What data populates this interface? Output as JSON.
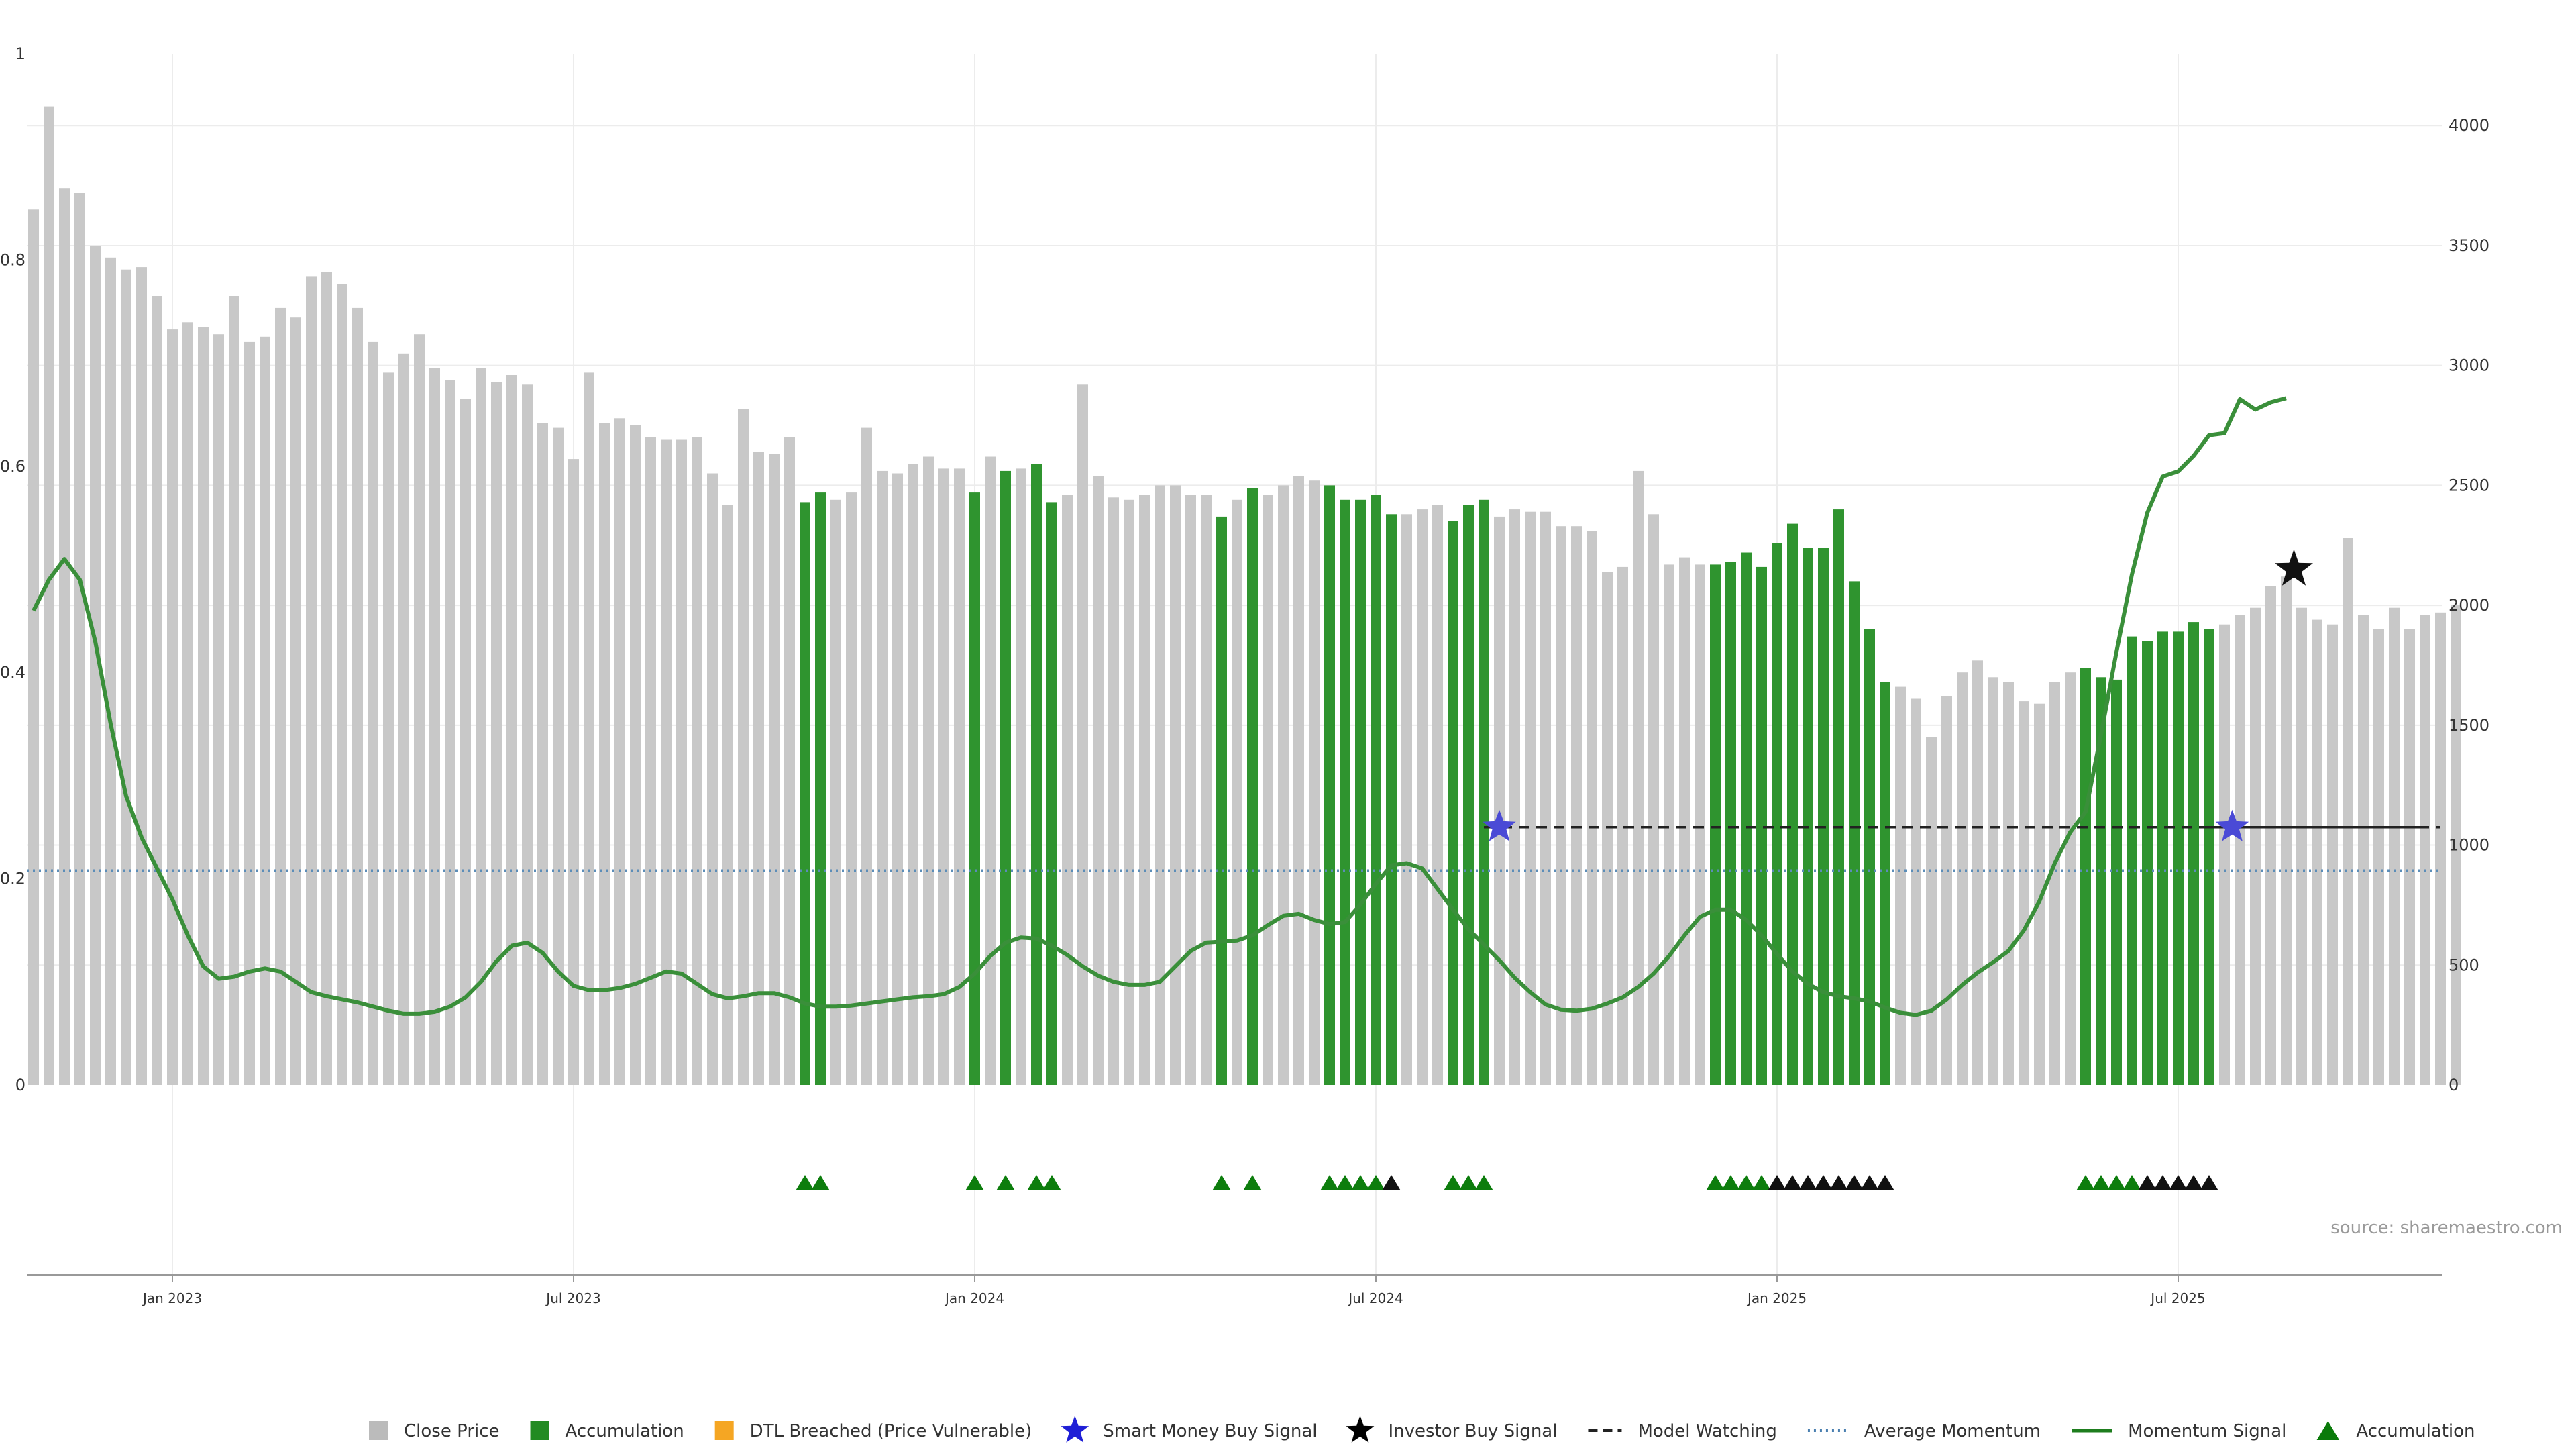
{
  "chart_data": {
    "type": "bar",
    "title": "",
    "source": "source: sharemaestro.com",
    "left_axis": {
      "min": 0,
      "max": 1,
      "ticks": [
        "0",
        "0.2",
        "0.4",
        "0.6",
        "0.8",
        "1"
      ],
      "tick_values": [
        0,
        0.2,
        0.4,
        0.6,
        0.8,
        1
      ]
    },
    "right_axis": {
      "min": 0,
      "max": 4300,
      "ticks": [
        "0",
        "500",
        "1000",
        "1500",
        "2000",
        "2500",
        "3000",
        "3500",
        "4000"
      ],
      "tick_values": [
        0,
        500,
        1000,
        1500,
        2000,
        2500,
        3000,
        3500,
        4000
      ]
    },
    "x_axis": {
      "ticks": [
        "Jan 2023",
        "Jul 2023",
        "Jan 2024",
        "Jul 2024",
        "Jan 2025",
        "Jul 2025"
      ],
      "tick_week_index": [
        9,
        35,
        61,
        87,
        113,
        139
      ]
    },
    "legend": [
      {
        "label": "Close Price",
        "symbol": "square",
        "color": "#bbbbbb"
      },
      {
        "label": "Accumulation",
        "symbol": "square",
        "color": "#228b22"
      },
      {
        "label": "DTL Breached (Price Vulnerable)",
        "symbol": "square",
        "color": "#f5a623"
      },
      {
        "label": "Smart Money Buy Signal",
        "symbol": "star",
        "color": "#1f1fd6"
      },
      {
        "label": "Investor Buy Signal",
        "symbol": "star",
        "color": "#000000"
      },
      {
        "label": "Model Watching",
        "symbol": "dash",
        "color": "#222222"
      },
      {
        "label": "Average Momentum",
        "symbol": "dot",
        "color": "#4a7fb0"
      },
      {
        "label": "Momentum Signal",
        "symbol": "line",
        "color": "#1e7d1e"
      },
      {
        "label": "Accumulation",
        "symbol": "triangle",
        "color": "#0a7a0a"
      }
    ],
    "colors": {
      "bar_default": "#c8c8c8",
      "bar_accumulation": "#2f942f",
      "momentum": "#3a8f3a",
      "avg_momentum": "#5b8db8",
      "watch": "#222222",
      "smart_star": "#4a4ad6",
      "investor_star": "#111111",
      "tri_green": "#0d7d0d",
      "tri_black": "#111111"
    },
    "series": [
      {
        "name": "Close Price",
        "axis": "right",
        "values": [
          3650,
          4080,
          3740,
          3720,
          3500,
          3450,
          3400,
          3410,
          3290,
          3150,
          3180,
          3160,
          3130,
          3290,
          3100,
          3120,
          3240,
          3200,
          3370,
          3390,
          3340,
          3240,
          3100,
          2970,
          3050,
          3130,
          2990,
          2940,
          2860,
          2990,
          2930,
          2960,
          2920,
          2760,
          2740,
          2610,
          2970,
          2760,
          2780,
          2750,
          2700,
          2690,
          2690,
          2700,
          2550,
          2420,
          2820,
          2640,
          2630,
          2700,
          2430,
          2470,
          2440,
          2470,
          2740,
          2560,
          2550,
          2590,
          2620,
          2570,
          2570,
          2470,
          2620,
          2560,
          2570,
          2590,
          2430,
          2460,
          2920,
          2540,
          2450,
          2440,
          2460,
          2500,
          2500,
          2460,
          2460,
          2370,
          2440,
          2490,
          2460,
          2500,
          2540,
          2520,
          2500,
          2440,
          2440,
          2460,
          2380,
          2380,
          2400,
          2420,
          2350,
          2420,
          2440,
          2370,
          2400,
          2390,
          2390,
          2330,
          2330,
          2310,
          2140,
          2160,
          2560,
          2380,
          2170,
          2200,
          2170,
          2170,
          2180,
          2220,
          2160,
          2260,
          2340,
          2240,
          2240,
          2400,
          2100,
          1900,
          1680,
          1660,
          1610,
          1450,
          1620,
          1720,
          1770,
          1700,
          1680,
          1600,
          1590,
          1680,
          1720,
          1740,
          1700,
          1690,
          1870,
          1850,
          1890,
          1890,
          1930,
          1900,
          1920,
          1960,
          1990,
          2080,
          2120,
          1990,
          1940,
          1920,
          2280,
          1960,
          1900,
          1990,
          1900,
          1960,
          1970,
          2000
        ]
      },
      {
        "name": "Accumulation",
        "kind": "bar_highlight",
        "week_index": [
          50,
          51,
          61,
          63,
          65,
          66,
          77,
          79,
          84,
          85,
          86,
          87,
          88,
          92,
          93,
          94,
          109,
          110,
          111,
          112,
          113,
          114,
          115,
          116,
          117,
          118,
          119,
          120,
          133,
          134,
          135,
          136,
          137,
          138,
          139,
          140,
          141
        ]
      },
      {
        "name": "Momentum Signal",
        "axis": "left",
        "values": [
          0.46,
          0.49,
          0.51,
          0.49,
          0.43,
          0.35,
          0.28,
          0.24,
          0.21,
          0.18,
          0.145,
          0.115,
          0.103,
          0.105,
          0.11,
          0.113,
          0.11,
          0.1,
          0.09,
          0.086,
          0.083,
          0.08,
          0.076,
          0.072,
          0.069,
          0.069,
          0.071,
          0.076,
          0.085,
          0.1,
          0.12,
          0.135,
          0.138,
          0.128,
          0.11,
          0.096,
          0.092,
          0.092,
          0.094,
          0.098,
          0.104,
          0.11,
          0.108,
          0.098,
          0.088,
          0.084,
          0.086,
          0.089,
          0.089,
          0.085,
          0.079,
          0.076,
          0.076,
          0.077,
          0.079,
          0.081,
          0.083,
          0.085,
          0.086,
          0.088,
          0.095,
          0.108,
          0.125,
          0.138,
          0.143,
          0.142,
          0.135,
          0.126,
          0.115,
          0.106,
          0.1,
          0.097,
          0.097,
          0.1,
          0.115,
          0.13,
          0.138,
          0.139,
          0.14,
          0.145,
          0.155,
          0.164,
          0.166,
          0.16,
          0.156,
          0.158,
          0.175,
          0.195,
          0.213,
          0.215,
          0.21,
          0.19,
          0.17,
          0.151,
          0.136,
          0.121,
          0.104,
          0.09,
          0.078,
          0.073,
          0.072,
          0.074,
          0.079,
          0.085,
          0.095,
          0.108,
          0.125,
          0.145,
          0.163,
          0.17,
          0.17,
          0.16,
          0.145,
          0.127,
          0.11,
          0.098,
          0.09,
          0.086,
          0.084,
          0.081,
          0.075,
          0.07,
          0.068,
          0.072,
          0.083,
          0.097,
          0.109,
          0.119,
          0.13,
          0.15,
          0.178,
          0.215,
          0.245,
          0.265,
          0.34,
          0.42,
          0.495,
          0.555,
          0.59,
          0.595,
          0.61,
          0.63,
          0.632,
          0.665,
          0.655,
          0.662,
          0.666
        ]
      },
      {
        "name": "Average Momentum",
        "axis": "left",
        "value": 0.208
      },
      {
        "name": "Model Watching",
        "axis": "left",
        "value": 0.25,
        "segments": [
          [
            94,
            155
          ],
          [
            141,
            156
          ]
        ]
      },
      {
        "name": "Smart Money Buy Signal",
        "axis": "left",
        "points": [
          {
            "week_index": 95,
            "value": 0.25
          },
          {
            "week_index": 142.5,
            "value": 0.25
          }
        ]
      },
      {
        "name": "Investor Buy Signal",
        "axis": "left",
        "points": [
          {
            "week_index": 146.5,
            "value": 0.5
          }
        ]
      },
      {
        "name": "Accumulation Markers",
        "kind": "triangles",
        "green_week_index": [
          50,
          51,
          61,
          63,
          65,
          66,
          77,
          79,
          84,
          85,
          86,
          87,
          92,
          93,
          94,
          109,
          110,
          111,
          112,
          133,
          134,
          135,
          136
        ],
        "black_week_index": [
          88,
          113,
          114,
          115,
          116,
          117,
          118,
          119,
          120,
          137,
          138,
          139,
          140,
          141
        ]
      }
    ]
  }
}
